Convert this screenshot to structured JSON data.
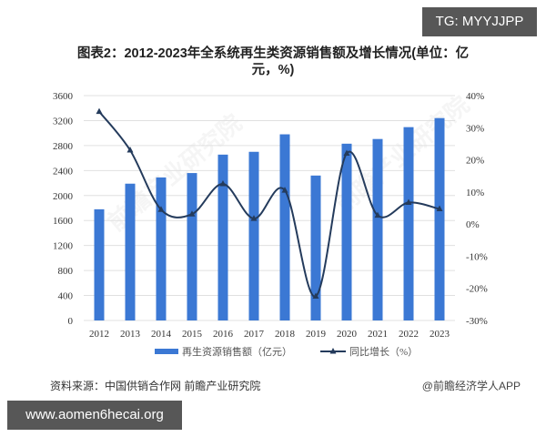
{
  "overlay": {
    "tg_label": "TG: MYYJJPP",
    "url_label": "www.aomen6hecai.org"
  },
  "header": {
    "title_line1": "图表2：2012-2023年全系统再生类资源销售额及增长情况(单位：亿",
    "title_line2": "元，%)"
  },
  "footer": {
    "source": "资料来源：中国供销合作网 前瞻产业研究院",
    "credit": "@前瞻经济学人APP"
  },
  "watermark": "前瞻产业研究院",
  "colors": {
    "bar": "#3b78d4",
    "line": "#243b5c",
    "grid": "#e0e0e0",
    "axis_text": "#333333"
  },
  "chart_data": {
    "type": "bar+line",
    "title": "图表2：2012-2023年全系统再生类资源销售额及增长情况(单位：亿元，%)",
    "categories": [
      "2012",
      "2013",
      "2014",
      "2015",
      "2016",
      "2017",
      "2018",
      "2019",
      "2020",
      "2021",
      "2022",
      "2023"
    ],
    "series": [
      {
        "name": "再生资源销售额（亿元）",
        "type": "bar",
        "axis": "left",
        "values": [
          1780,
          2190,
          2290,
          2360,
          2655,
          2700,
          2980,
          2320,
          2830,
          2905,
          3095,
          3240
        ]
      },
      {
        "name": "同比增长（%）",
        "type": "line",
        "marker": "triangle",
        "axis": "right",
        "values": [
          35.0,
          23.0,
          4.5,
          3.1,
          12.5,
          1.7,
          10.5,
          -22.5,
          22.0,
          2.7,
          6.7,
          4.7
        ]
      }
    ],
    "left_axis": {
      "ylim": [
        0,
        3600
      ],
      "ticks": [
        "0",
        "400",
        "800",
        "1200",
        "1600",
        "2000",
        "2400",
        "2800",
        "3200",
        "3600"
      ]
    },
    "right_axis": {
      "ylim": [
        -30,
        40
      ],
      "ticks": [
        "-30%",
        "-20%",
        "-10%",
        "0%",
        "10%",
        "20%",
        "30%",
        "40%"
      ]
    },
    "xlabel": "",
    "ylabel": "",
    "grid": true,
    "legend": {
      "position": "bottom",
      "entries": [
        "再生资源销售额（亿元）",
        "同比增长（%）"
      ]
    }
  }
}
